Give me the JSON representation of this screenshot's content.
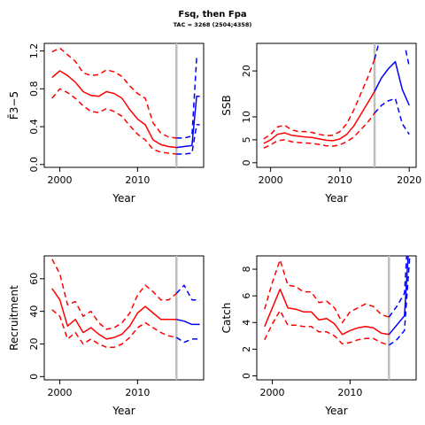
{
  "header": {
    "title": "Fsq, then Fpa",
    "subtitle": "TAC = 3268 (2504;4358)"
  },
  "chart_data": [
    {
      "type": "line",
      "xlabel": "Year",
      "ylabel": "F̄3−5",
      "xlim": [
        1998,
        2018.5
      ],
      "ylim": [
        -0.03,
        1.28
      ],
      "xticks": [
        2000,
        2010
      ],
      "yticks": [
        0.0,
        0.4,
        0.8,
        1.2
      ],
      "ytick_labels": [
        "0.0",
        "0.4",
        "0.8",
        "1.2"
      ],
      "vline": 2015,
      "series": [
        {
          "style": "hist",
          "color": "#ff0000",
          "dash": false,
          "x": [
            1999,
            2000,
            2001,
            2002,
            2003,
            2004,
            2005,
            2006,
            2007,
            2008,
            2009,
            2010,
            2011,
            2012,
            2013,
            2014,
            2015
          ],
          "y": [
            0.92,
            0.99,
            0.94,
            0.87,
            0.77,
            0.73,
            0.72,
            0.77,
            0.75,
            0.7,
            0.58,
            0.48,
            0.42,
            0.26,
            0.21,
            0.19,
            0.18
          ]
        },
        {
          "style": "hist",
          "color": "#ff0000",
          "dash": true,
          "x": [
            1999,
            2000,
            2001,
            2002,
            2003,
            2004,
            2005,
            2006,
            2007,
            2008,
            2009,
            2010,
            2011,
            2012,
            2013,
            2014,
            2015
          ],
          "y": [
            1.19,
            1.23,
            1.16,
            1.09,
            0.97,
            0.94,
            0.95,
            1.0,
            0.98,
            0.93,
            0.83,
            0.75,
            0.7,
            0.44,
            0.33,
            0.29,
            0.28
          ]
        },
        {
          "style": "hist",
          "color": "#ff0000",
          "dash": true,
          "x": [
            1999,
            2000,
            2001,
            2002,
            2003,
            2004,
            2005,
            2006,
            2007,
            2008,
            2009,
            2010,
            2011,
            2012,
            2013,
            2014,
            2015
          ],
          "y": [
            0.7,
            0.8,
            0.76,
            0.7,
            0.62,
            0.56,
            0.55,
            0.59,
            0.56,
            0.51,
            0.41,
            0.32,
            0.26,
            0.16,
            0.13,
            0.12,
            0.11
          ]
        },
        {
          "style": "proj",
          "color": "#0000ff",
          "dash": false,
          "x": [
            2015,
            2016,
            2017,
            2017.6,
            2018
          ],
          "y": [
            0.18,
            0.19,
            0.2,
            0.72,
            0.72
          ]
        },
        {
          "style": "proj",
          "color": "#0000ff",
          "dash": true,
          "x": [
            2015,
            2016,
            2017,
            2017.6,
            2018
          ],
          "y": [
            0.28,
            0.28,
            0.3,
            1.13,
            1.13
          ]
        },
        {
          "style": "proj",
          "color": "#0000ff",
          "dash": true,
          "x": [
            2015,
            2016,
            2017,
            2017.6,
            2018
          ],
          "y": [
            0.11,
            0.11,
            0.12,
            0.42,
            0.42
          ]
        }
      ]
    },
    {
      "type": "line",
      "xlabel": "Year",
      "ylabel": "SSB",
      "xlim": [
        1998,
        2021
      ],
      "ylim": [
        -1,
        26
      ],
      "xticks": [
        2000,
        2010,
        2020
      ],
      "yticks": [
        0,
        5,
        10,
        20
      ],
      "ytick_labels": [
        "0",
        "5",
        "10",
        "20"
      ],
      "vline": 2015,
      "series": [
        {
          "style": "hist",
          "color": "#ff0000",
          "dash": false,
          "x": [
            1999,
            2000,
            2001,
            2002,
            2003,
            2004,
            2005,
            2006,
            2007,
            2008,
            2009,
            2010,
            2011,
            2012,
            2013,
            2014,
            2015
          ],
          "y": [
            4.2,
            5.0,
            6.2,
            6.5,
            6.0,
            5.8,
            5.6,
            5.5,
            5.2,
            4.9,
            4.8,
            5.2,
            6.2,
            8.0,
            10.5,
            13.0,
            15.5
          ]
        },
        {
          "style": "hist",
          "color": "#ff0000",
          "dash": true,
          "x": [
            1999,
            2000,
            2001,
            2002,
            2003,
            2004,
            2005,
            2006,
            2007,
            2008,
            2009,
            2010,
            2011,
            2012,
            2013,
            2014,
            2015
          ],
          "y": [
            5.2,
            6.2,
            7.8,
            8.2,
            7.2,
            6.8,
            6.8,
            6.6,
            6.2,
            5.9,
            6.0,
            6.8,
            8.5,
            11.5,
            15.0,
            18.5,
            22.5
          ]
        },
        {
          "style": "hist",
          "color": "#ff0000",
          "dash": true,
          "x": [
            1999,
            2000,
            2001,
            2002,
            2003,
            2004,
            2005,
            2006,
            2007,
            2008,
            2009,
            2010,
            2011,
            2012,
            2013,
            2014,
            2015
          ],
          "y": [
            3.2,
            3.9,
            4.8,
            5.0,
            4.6,
            4.4,
            4.3,
            4.2,
            4.0,
            3.7,
            3.6,
            3.9,
            4.6,
            5.6,
            7.2,
            8.8,
            10.8
          ]
        },
        {
          "style": "proj",
          "color": "#0000ff",
          "dash": false,
          "x": [
            2015,
            2016,
            2017,
            2018,
            2019,
            2020
          ],
          "y": [
            15.5,
            18.5,
            20.5,
            22.0,
            16.0,
            12.5
          ]
        },
        {
          "style": "proj",
          "color": "#0000ff",
          "dash": true,
          "x": [
            2015,
            2015.6
          ],
          "y": [
            22.5,
            26.0
          ]
        },
        {
          "style": "proj",
          "color": "#0000ff",
          "dash": true,
          "x": [
            2019.5,
            2020
          ],
          "y": [
            24.5,
            21.0
          ]
        },
        {
          "style": "proj",
          "color": "#0000ff",
          "dash": true,
          "x": [
            2015,
            2016,
            2017,
            2018,
            2019,
            2020
          ],
          "y": [
            10.8,
            12.5,
            13.5,
            14.0,
            8.5,
            6.2
          ]
        }
      ]
    },
    {
      "type": "line",
      "xlabel": "Year",
      "ylabel": "Recruitment",
      "xlim": [
        1998,
        2018.5
      ],
      "ylim": [
        -2,
        74
      ],
      "xticks": [
        2000,
        2010
      ],
      "yticks": [
        0,
        20,
        40,
        60
      ],
      "ytick_labels": [
        "0",
        "20",
        "40",
        "60"
      ],
      "vline": 2015,
      "series": [
        {
          "style": "hist",
          "color": "#ff0000",
          "dash": false,
          "x": [
            1999,
            2000,
            2001,
            2002,
            2003,
            2004,
            2005,
            2006,
            2007,
            2008,
            2009,
            2010,
            2011,
            2012,
            2013,
            2014,
            2015
          ],
          "y": [
            54,
            47,
            31,
            35,
            27,
            30,
            26,
            23,
            24,
            26,
            31,
            39,
            43,
            39,
            35,
            35,
            35
          ]
        },
        {
          "style": "hist",
          "color": "#ff0000",
          "dash": true,
          "x": [
            1999,
            2000,
            2001,
            2002,
            2003,
            2004,
            2005,
            2006,
            2007,
            2008,
            2009,
            2010,
            2011,
            2012,
            2013,
            2014,
            2015
          ],
          "y": [
            72,
            63,
            44,
            46,
            37,
            40,
            33,
            29,
            30,
            33,
            39,
            50,
            56,
            52,
            47,
            47,
            51
          ]
        },
        {
          "style": "hist",
          "color": "#ff0000",
          "dash": true,
          "x": [
            1999,
            2000,
            2001,
            2002,
            2003,
            2004,
            2005,
            2006,
            2007,
            2008,
            2009,
            2010,
            2011,
            2012,
            2013,
            2014,
            2015
          ],
          "y": [
            41,
            37,
            23,
            27,
            20,
            23,
            20,
            18,
            18,
            20,
            24,
            30,
            33,
            30,
            27,
            25,
            24
          ]
        },
        {
          "style": "proj",
          "color": "#0000ff",
          "dash": false,
          "x": [
            2015,
            2016,
            2017,
            2018
          ],
          "y": [
            35,
            34,
            32,
            32
          ]
        },
        {
          "style": "proj",
          "color": "#0000ff",
          "dash": true,
          "x": [
            2015,
            2016,
            2017,
            2018
          ],
          "y": [
            51,
            56,
            47,
            47
          ]
        },
        {
          "style": "proj",
          "color": "#0000ff",
          "dash": true,
          "x": [
            2015,
            2016,
            2017,
            2018
          ],
          "y": [
            24,
            21,
            23,
            23
          ]
        }
      ]
    },
    {
      "type": "line",
      "xlabel": "Year",
      "ylabel": "Catch",
      "xlim": [
        1998,
        2018.5
      ],
      "ylim": [
        -0.3,
        9.0
      ],
      "xticks": [
        2000,
        2010
      ],
      "yticks": [
        0,
        2,
        4,
        6,
        8
      ],
      "ytick_labels": [
        "0",
        "2",
        "4",
        "6",
        "8"
      ],
      "vline": 2015,
      "series": [
        {
          "style": "hist",
          "color": "#ff0000",
          "dash": false,
          "x": [
            1999,
            2000,
            2001,
            2002,
            2003,
            2004,
            2005,
            2006,
            2007,
            2008,
            2009,
            2010,
            2011,
            2012,
            2013,
            2014,
            2015
          ],
          "y": [
            3.7,
            5.1,
            6.5,
            5.1,
            5.0,
            4.8,
            4.8,
            4.2,
            4.3,
            3.9,
            3.1,
            3.4,
            3.6,
            3.7,
            3.6,
            3.2,
            3.1
          ]
        },
        {
          "style": "hist",
          "color": "#ff0000",
          "dash": true,
          "x": [
            1999,
            2000,
            2001,
            2002,
            2003,
            2004,
            2005,
            2006,
            2007,
            2008,
            2009,
            2010,
            2011,
            2012,
            2013,
            2014,
            2015
          ],
          "y": [
            5.0,
            7.0,
            8.7,
            6.8,
            6.7,
            6.3,
            6.3,
            5.5,
            5.6,
            5.1,
            4.0,
            4.8,
            5.1,
            5.4,
            5.2,
            4.6,
            4.4
          ]
        },
        {
          "style": "hist",
          "color": "#ff0000",
          "dash": true,
          "x": [
            1999,
            2000,
            2001,
            2002,
            2003,
            2004,
            2005,
            2006,
            2007,
            2008,
            2009,
            2010,
            2011,
            2012,
            2013,
            2014,
            2015
          ],
          "y": [
            2.7,
            3.9,
            4.9,
            3.8,
            3.8,
            3.7,
            3.7,
            3.3,
            3.3,
            3.0,
            2.4,
            2.5,
            2.7,
            2.8,
            2.8,
            2.5,
            2.3
          ]
        },
        {
          "style": "proj",
          "color": "#0000ff",
          "dash": false,
          "x": [
            2015,
            2016,
            2017,
            2017.5
          ],
          "y": [
            3.1,
            3.8,
            4.5,
            9.2
          ]
        },
        {
          "style": "proj",
          "color": "#0000ff",
          "dash": true,
          "x": [
            2015,
            2016,
            2017,
            2017.3
          ],
          "y": [
            4.4,
            5.2,
            6.2,
            9.2
          ]
        },
        {
          "style": "proj",
          "color": "#0000ff",
          "dash": true,
          "x": [
            2015,
            2016,
            2017,
            2017.7
          ],
          "y": [
            2.3,
            2.7,
            3.4,
            9.2
          ]
        }
      ]
    }
  ]
}
